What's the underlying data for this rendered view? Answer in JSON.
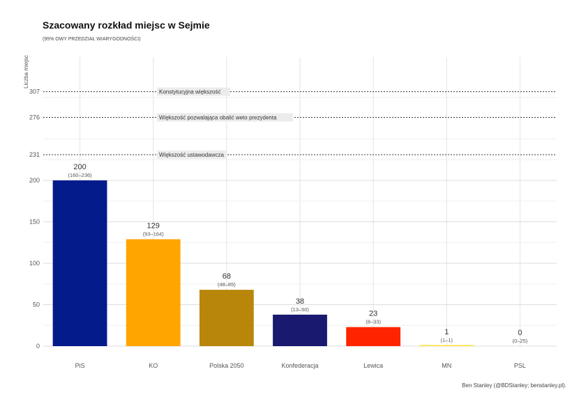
{
  "chart_data": {
    "type": "bar",
    "title": "Szacowany rozkład miejsc w Sejmie",
    "subtitle": "(95% OWY PRZEDZIAŁ WIARYGODNOŚCI)",
    "ylabel": "Liczba miejsc",
    "xlabel": "",
    "caption": "Ben Stanley (@BDStanley; benstanley.pl).",
    "ylim": [
      0,
      315
    ],
    "yticks": [
      0,
      50,
      100,
      150,
      200,
      231,
      276,
      307
    ],
    "grid": true,
    "categories": [
      "PiS",
      "KO",
      "Polska 2050",
      "Konfederacja",
      "Lewica",
      "MN",
      "PSL"
    ],
    "values": [
      200,
      129,
      68,
      38,
      23,
      1,
      0
    ],
    "value_labels": [
      "200",
      "129",
      "68",
      "38",
      "23",
      "1",
      "0"
    ],
    "intervals": [
      "(160–236)",
      "(93–164)",
      "(48–85)",
      "(13–50)",
      "(8–33)",
      "(1–1)",
      "(0–25)"
    ],
    "colors": [
      "#041b8c",
      "#ffa500",
      "#b8860b",
      "#191970",
      "#ff2400",
      "#ffe135",
      "#1a9c4a"
    ],
    "reference_lines": [
      {
        "value": 307,
        "label": "Konstytucyjna większość"
      },
      {
        "value": 276,
        "label": "Większość pozwalająca obalić weto prezydenta"
      },
      {
        "value": 231,
        "label": "Większość ustawodawcza"
      }
    ]
  }
}
